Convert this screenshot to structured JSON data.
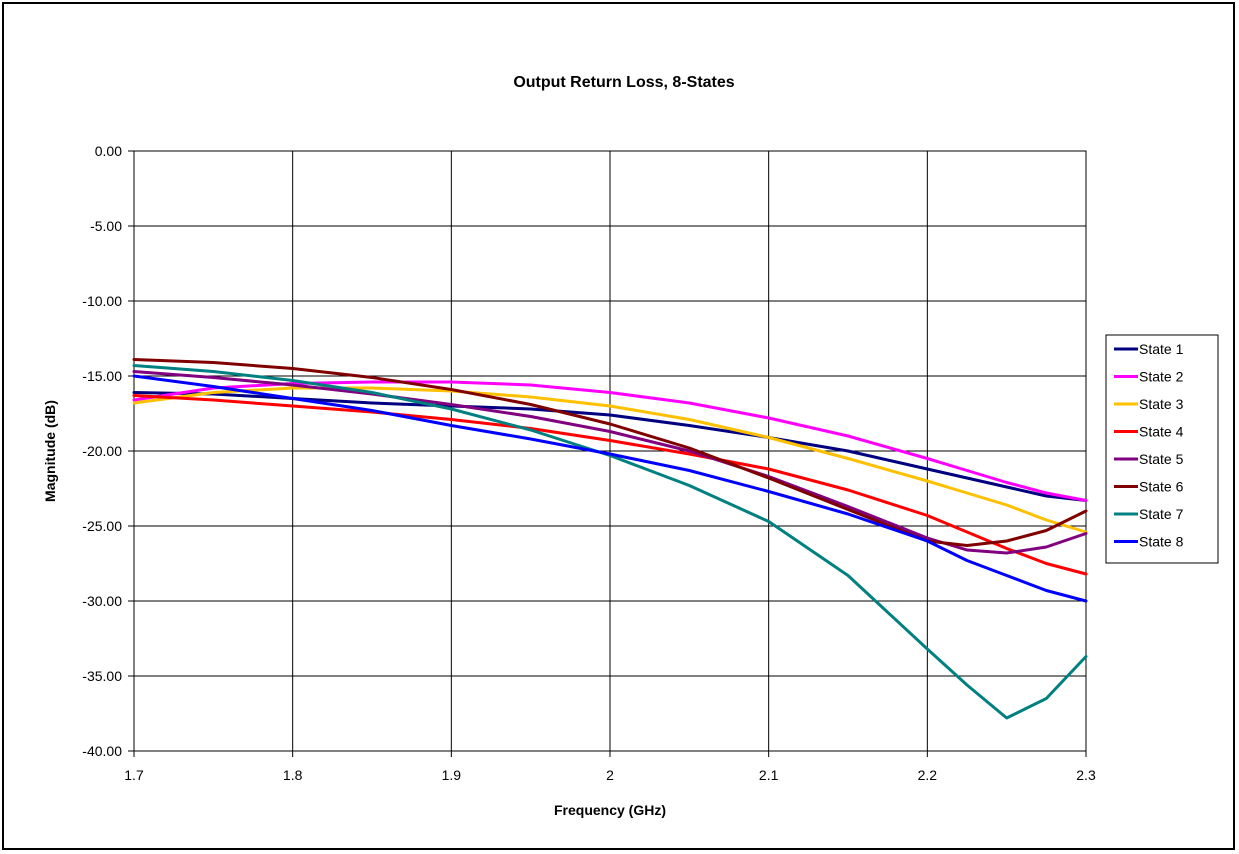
{
  "chart_data": {
    "type": "line",
    "title": "Output Return Loss, 8-States",
    "xlabel": "Frequency (GHz)",
    "ylabel": "Magnitude (dB)",
    "xlim": [
      1.7,
      2.3
    ],
    "ylim": [
      -40,
      0
    ],
    "x_ticks": [
      "1.7",
      "1.8",
      "1.9",
      "2",
      "2.1",
      "2.2",
      "2.3"
    ],
    "y_ticks": [
      "0.00",
      "-5.00",
      "-10.00",
      "-15.00",
      "-20.00",
      "-25.00",
      "-30.00",
      "-35.00",
      "-40.00"
    ],
    "grid": true,
    "legend_position": "right",
    "x": [
      1.7,
      1.75,
      1.8,
      1.85,
      1.9,
      1.95,
      2.0,
      2.05,
      2.1,
      2.15,
      2.2,
      2.225,
      2.25,
      2.275,
      2.3
    ],
    "series": [
      {
        "name": "State 1",
        "color": "#000080",
        "values": [
          -16.1,
          -16.2,
          -16.5,
          -16.8,
          -17.0,
          -17.2,
          -17.6,
          -18.3,
          -19.1,
          -20.0,
          -21.2,
          -21.8,
          -22.4,
          -23.0,
          -23.3
        ]
      },
      {
        "name": "State 2",
        "color": "#FF00FF",
        "values": [
          -16.6,
          -15.8,
          -15.5,
          -15.4,
          -15.4,
          -15.6,
          -16.1,
          -16.8,
          -17.8,
          -19.0,
          -20.5,
          -21.3,
          -22.1,
          -22.8,
          -23.3
        ]
      },
      {
        "name": "State 3",
        "color": "#FFC000",
        "values": [
          -16.8,
          -16.1,
          -15.8,
          -15.8,
          -16.0,
          -16.4,
          -17.0,
          -17.9,
          -19.1,
          -20.5,
          -22.0,
          -22.8,
          -23.6,
          -24.6,
          -25.4
        ]
      },
      {
        "name": "State 4",
        "color": "#FF0000",
        "values": [
          -16.3,
          -16.6,
          -17.0,
          -17.4,
          -17.9,
          -18.5,
          -19.3,
          -20.2,
          -21.2,
          -22.6,
          -24.3,
          -25.4,
          -26.5,
          -27.5,
          -28.2
        ]
      },
      {
        "name": "State 5",
        "color": "#800080",
        "values": [
          -14.7,
          -15.1,
          -15.6,
          -16.2,
          -16.9,
          -17.7,
          -18.7,
          -20.0,
          -21.7,
          -23.7,
          -25.8,
          -26.6,
          -26.8,
          -26.4,
          -25.5
        ]
      },
      {
        "name": "State 6",
        "color": "#800000",
        "values": [
          -13.9,
          -14.1,
          -14.5,
          -15.1,
          -15.9,
          -16.9,
          -18.2,
          -19.8,
          -21.8,
          -23.9,
          -26.0,
          -26.3,
          -26.0,
          -25.3,
          -24.0
        ]
      },
      {
        "name": "State 7",
        "color": "#008080",
        "values": [
          -14.3,
          -14.7,
          -15.3,
          -16.1,
          -17.2,
          -18.6,
          -20.3,
          -22.3,
          -24.7,
          -28.3,
          -33.2,
          -35.6,
          -37.8,
          -36.5,
          -33.7
        ]
      },
      {
        "name": "State 8",
        "color": "#0000FF",
        "values": [
          -15.0,
          -15.7,
          -16.5,
          -17.3,
          -18.3,
          -19.2,
          -20.2,
          -21.3,
          -22.7,
          -24.2,
          -26.0,
          -27.3,
          -28.3,
          -29.3,
          -30.0
        ]
      }
    ]
  }
}
